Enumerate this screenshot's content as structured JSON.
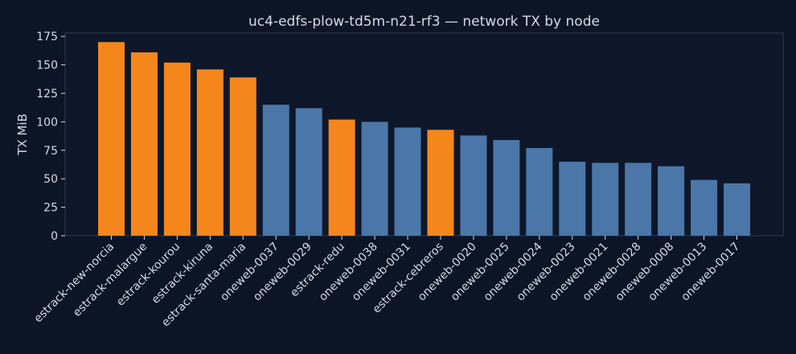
{
  "chart_data": {
    "type": "bar",
    "title": "uc4-edfs-plow-td5m-n21-rf3 — network TX by node",
    "xlabel": "",
    "ylabel": "TX MiB",
    "ylim": [
      0,
      178
    ],
    "yticks": [
      0,
      25,
      50,
      75,
      100,
      125,
      150,
      175
    ],
    "grid": false,
    "categories": [
      "estrack-new-norcia",
      "estrack-malargue",
      "estrack-kourou",
      "estrack-kiruna",
      "estrack-santa-maria",
      "oneweb-0037",
      "oneweb-0029",
      "estrack-redu",
      "oneweb-0038",
      "oneweb-0031",
      "estrack-cebreros",
      "oneweb-0020",
      "oneweb-0025",
      "oneweb-0024",
      "oneweb-0023",
      "oneweb-0021",
      "oneweb-0028",
      "oneweb-0008",
      "oneweb-0013",
      "oneweb-0017"
    ],
    "values": [
      170,
      161,
      152,
      146,
      139,
      115,
      112,
      102,
      100,
      95,
      93,
      88,
      84,
      77,
      65,
      64,
      64,
      61,
      49,
      46
    ],
    "groups": [
      "estrack",
      "estrack",
      "estrack",
      "estrack",
      "estrack",
      "oneweb",
      "oneweb",
      "estrack",
      "oneweb",
      "oneweb",
      "estrack",
      "oneweb",
      "oneweb",
      "oneweb",
      "oneweb",
      "oneweb",
      "oneweb",
      "oneweb",
      "oneweb",
      "oneweb"
    ],
    "colors": {
      "estrack": "#f5861b",
      "oneweb": "#4a76a8",
      "background": "#0b1526",
      "plot_background": "#0d1729",
      "axis": "#2a3a52",
      "text": "#d5dbe5"
    }
  }
}
